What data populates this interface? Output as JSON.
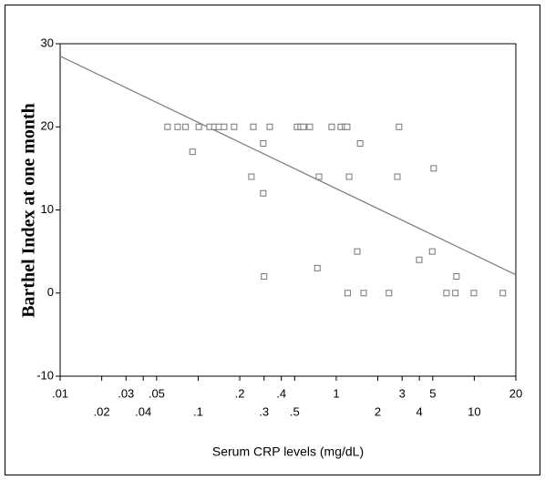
{
  "chart_data": {
    "type": "scatter",
    "x_label": "Serum CRP levels (mg/dL)",
    "y_label": "Barthel Index at one month",
    "xscale": "log",
    "xlim": [
      0.01,
      20
    ],
    "ylim": [
      -10,
      30
    ],
    "xticks": [
      {
        "value": 0.01,
        "label": ".01"
      },
      {
        "value": 0.02,
        "label": ".02"
      },
      {
        "value": 0.03,
        "label": ".03"
      },
      {
        "value": 0.04,
        "label": ".04"
      },
      {
        "value": 0.05,
        "label": ".05"
      },
      {
        "value": 0.1,
        "label": ".1"
      },
      {
        "value": 0.2,
        "label": ".2"
      },
      {
        "value": 0.3,
        "label": ".3"
      },
      {
        "value": 0.4,
        "label": ".4"
      },
      {
        "value": 0.5,
        "label": ".5"
      },
      1,
      2,
      3,
      4,
      5,
      10,
      20
    ],
    "yticks": [
      -10,
      0,
      10,
      20,
      30
    ],
    "color": "#777777",
    "x": [
      0.06,
      0.071,
      0.081,
      0.101,
      0.121,
      0.131,
      0.141,
      0.154,
      0.182,
      0.251,
      0.33,
      0.52,
      0.553,
      0.578,
      0.644,
      0.927,
      1.08,
      1.16,
      1.2,
      2.85,
      0.091,
      0.243,
      0.296,
      0.296,
      0.3,
      0.75,
      0.73,
      1.24,
      1.21,
      1.49,
      1.42,
      1.58,
      2.41,
      2.77,
      3.99,
      5.08,
      4.96,
      6.29,
      7.43,
      7.3,
      9.93,
      16.1
    ],
    "y": [
      20,
      20,
      20,
      20,
      20,
      20,
      20,
      20,
      20,
      20,
      20,
      20,
      20,
      20,
      20,
      20,
      20,
      20,
      20,
      20,
      17,
      14,
      18,
      12,
      2,
      14,
      3,
      14,
      0,
      18,
      5,
      0,
      0,
      14,
      4,
      15,
      5,
      0,
      2,
      0,
      0,
      0
    ],
    "fit": {
      "color": "#808080",
      "x": [
        0.01,
        20
      ],
      "y": [
        28.5,
        2.2
      ]
    }
  }
}
